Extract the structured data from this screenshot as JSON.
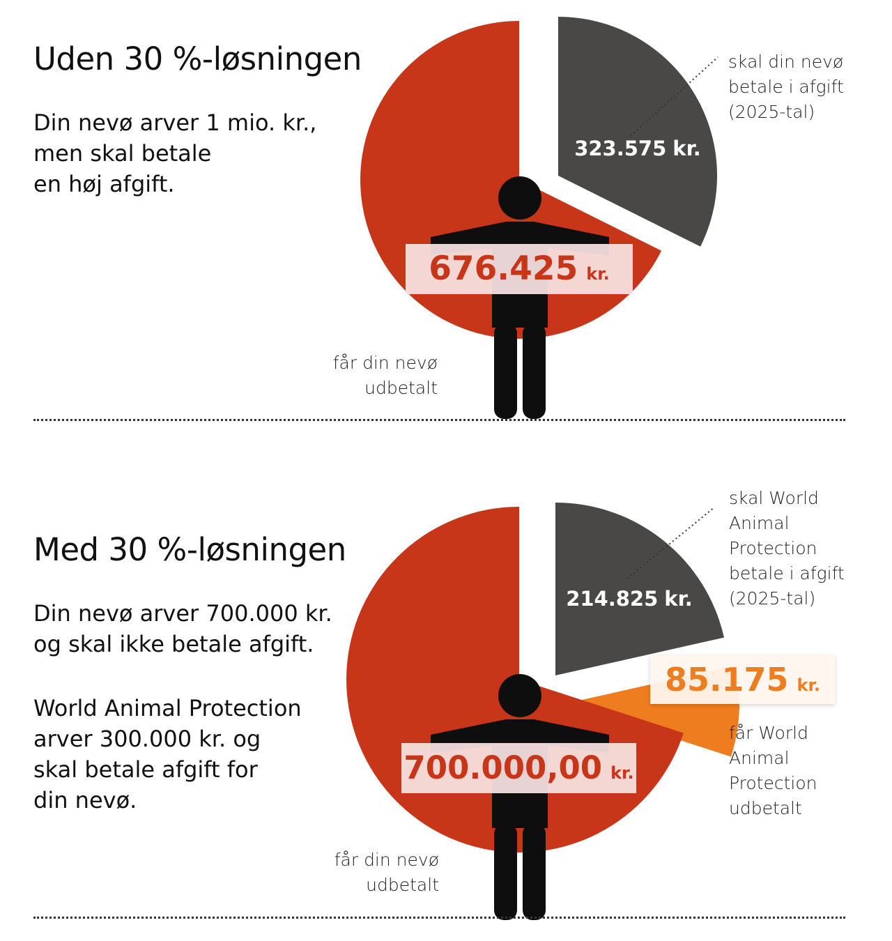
{
  "colors": {
    "red": "#c8361a",
    "gray": "#4a4847",
    "orange": "#ee7d1f",
    "black": "#0e0e0e"
  },
  "sections": [
    {
      "title": "Uden 30 %-løsningen",
      "paragraphs": [
        [
          "Din nevø arver 1 mio. kr.,",
          "men skal betale",
          "en høj afgift."
        ]
      ],
      "annotations": {
        "tax": [
          "skal din nevø",
          "betale i afgift",
          "(2025-tal)"
        ],
        "nephew": [
          "får din nevø",
          "udbetalt"
        ]
      }
    },
    {
      "title": "Med 30 %-løsningen",
      "paragraphs": [
        [
          "Din nevø arver 700.000 kr.",
          "og skal ikke betale afgift."
        ],
        [
          "World Animal Protection",
          "arver 300.000 kr. og",
          "skal betale afgift for",
          "din nevø."
        ]
      ],
      "annotations": {
        "tax": [
          "skal World",
          "Animal",
          "Protection",
          "betale i afgift",
          "(2025-tal)"
        ],
        "wap": [
          "får World",
          "Animal",
          "Protection",
          "udbetalt"
        ],
        "nephew": [
          "får din nevø",
          "udbetalt"
        ]
      }
    }
  ],
  "chart_data": [
    {
      "type": "pie",
      "slices": [
        {
          "label": "får din nevø udbetalt",
          "value": 676425,
          "display": "676.425",
          "unit": "kr.",
          "color": "#c8361a"
        },
        {
          "label": "skal din nevø betale i afgift (2025-tal)",
          "value": 323575,
          "display": "323.575",
          "unit": "kr.",
          "color": "#4a4847"
        }
      ]
    },
    {
      "type": "pie",
      "slices": [
        {
          "label": "får din nevø udbetalt",
          "value": 700000,
          "display": "700.000,00",
          "unit": "kr.",
          "color": "#c8361a"
        },
        {
          "label": "skal World Animal Protection betale i afgift (2025-tal)",
          "value": 214825,
          "display": "214.825",
          "unit": "kr.",
          "color": "#4a4847"
        },
        {
          "label": "får World Animal Protection udbetalt",
          "value": 85175,
          "display": "85.175",
          "unit": "kr.",
          "color": "#ee7d1f"
        }
      ]
    }
  ]
}
